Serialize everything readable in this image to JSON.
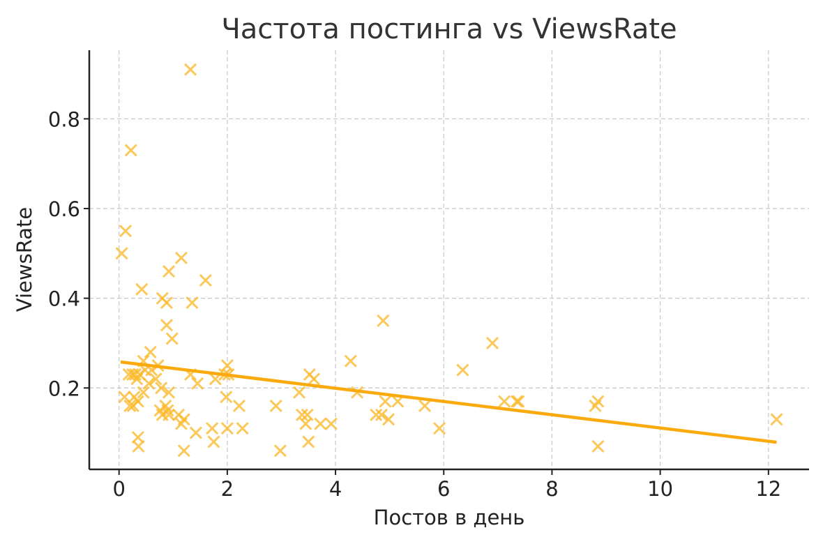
{
  "chart_data": {
    "type": "scatter",
    "title": "Частота постинга vs ViewsRate",
    "xlabel": "Постов в день",
    "ylabel": "ViewsRate",
    "xlim": [
      -0.55,
      12.75
    ],
    "ylim": [
      0.0185,
      0.953
    ],
    "x_ticks": [
      0,
      2,
      4,
      6,
      8,
      10,
      12
    ],
    "y_ticks": [
      0.2,
      0.4,
      0.6,
      0.8
    ],
    "x_tick_labels": [
      "0",
      "2",
      "4",
      "6",
      "8",
      "10",
      "12"
    ],
    "y_tick_labels": [
      "0.2",
      "0.4",
      "0.6",
      "0.8"
    ],
    "grid": true,
    "colors": {
      "points": "#fbb82a",
      "trend": "#fbaa0e",
      "grid": "#c8c8c8",
      "axis": "#222222"
    },
    "marker": "x",
    "points": [
      [
        1.32,
        0.91
      ],
      [
        0.22,
        0.73
      ],
      [
        0.12,
        0.55
      ],
      [
        0.05,
        0.5
      ],
      [
        1.15,
        0.49
      ],
      [
        0.92,
        0.46
      ],
      [
        1.6,
        0.44
      ],
      [
        0.42,
        0.42
      ],
      [
        0.8,
        0.4
      ],
      [
        0.88,
        0.39
      ],
      [
        1.35,
        0.39
      ],
      [
        0.88,
        0.34
      ],
      [
        0.98,
        0.31
      ],
      [
        0.58,
        0.28
      ],
      [
        0.45,
        0.26
      ],
      [
        0.48,
        0.24
      ],
      [
        0.72,
        0.25
      ],
      [
        0.6,
        0.24
      ],
      [
        0.38,
        0.23
      ],
      [
        0.3,
        0.23
      ],
      [
        0.25,
        0.23
      ],
      [
        0.18,
        0.23
      ],
      [
        0.68,
        0.22
      ],
      [
        0.33,
        0.22
      ],
      [
        0.55,
        0.21
      ],
      [
        0.78,
        0.2
      ],
      [
        0.92,
        0.19
      ],
      [
        0.45,
        0.19
      ],
      [
        0.28,
        0.18
      ],
      [
        0.1,
        0.18
      ],
      [
        0.35,
        0.17
      ],
      [
        0.26,
        0.16
      ],
      [
        0.2,
        0.16
      ],
      [
        0.86,
        0.16
      ],
      [
        0.76,
        0.15
      ],
      [
        0.9,
        0.15
      ],
      [
        0.8,
        0.14
      ],
      [
        0.92,
        0.14
      ],
      [
        1.1,
        0.14
      ],
      [
        1.2,
        0.13
      ],
      [
        1.15,
        0.12
      ],
      [
        1.42,
        0.1
      ],
      [
        0.35,
        0.09
      ],
      [
        0.36,
        0.07
      ],
      [
        1.2,
        0.06
      ],
      [
        1.32,
        0.23
      ],
      [
        1.45,
        0.21
      ],
      [
        1.78,
        0.22
      ],
      [
        1.95,
        0.23
      ],
      [
        2.0,
        0.25
      ],
      [
        2.02,
        0.23
      ],
      [
        1.98,
        0.18
      ],
      [
        2.22,
        0.16
      ],
      [
        1.72,
        0.11
      ],
      [
        2.0,
        0.11
      ],
      [
        2.28,
        0.11
      ],
      [
        1.75,
        0.08
      ],
      [
        2.9,
        0.16
      ],
      [
        2.98,
        0.06
      ],
      [
        3.33,
        0.19
      ],
      [
        3.38,
        0.14
      ],
      [
        3.45,
        0.12
      ],
      [
        3.48,
        0.14
      ],
      [
        3.52,
        0.23
      ],
      [
        3.6,
        0.22
      ],
      [
        3.5,
        0.08
      ],
      [
        3.72,
        0.12
      ],
      [
        3.92,
        0.12
      ],
      [
        4.28,
        0.26
      ],
      [
        4.4,
        0.19
      ],
      [
        4.75,
        0.14
      ],
      [
        4.85,
        0.14
      ],
      [
        4.88,
        0.35
      ],
      [
        4.92,
        0.17
      ],
      [
        4.98,
        0.13
      ],
      [
        5.15,
        0.17
      ],
      [
        5.65,
        0.16
      ],
      [
        5.92,
        0.11
      ],
      [
        6.35,
        0.24
      ],
      [
        6.9,
        0.3
      ],
      [
        7.12,
        0.17
      ],
      [
        7.35,
        0.17
      ],
      [
        7.38,
        0.17
      ],
      [
        8.8,
        0.16
      ],
      [
        8.85,
        0.17
      ],
      [
        8.85,
        0.07
      ],
      [
        12.15,
        0.13
      ]
    ],
    "trendline": {
      "x": [
        0.03,
        12.15
      ],
      "y": [
        0.258,
        0.079
      ]
    }
  }
}
